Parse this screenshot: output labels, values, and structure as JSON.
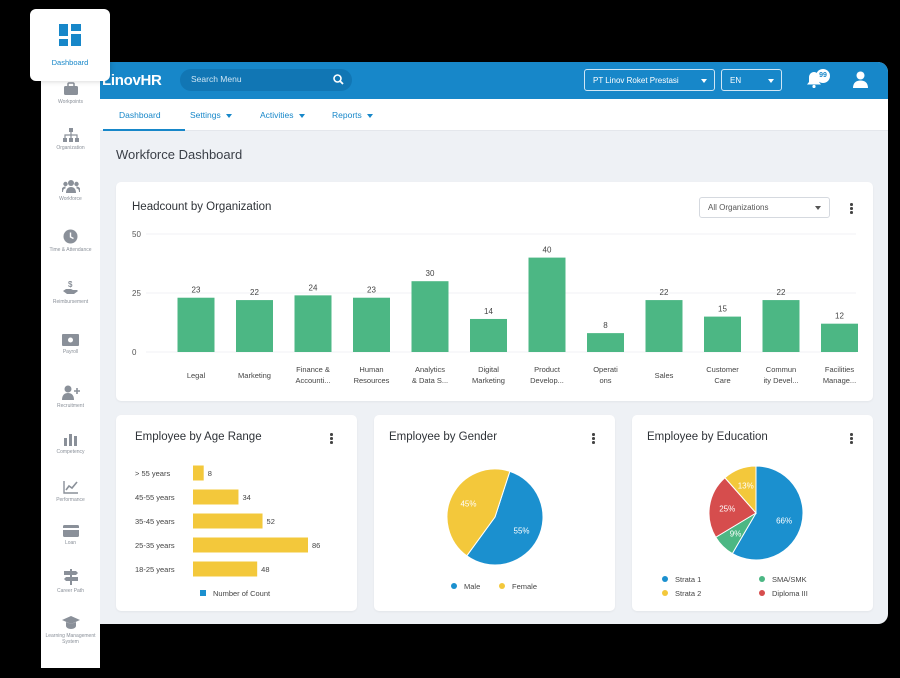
{
  "app": {
    "logo": "LinovHR"
  },
  "search": {
    "placeholder": "Search Menu"
  },
  "company_select": {
    "value": "PT Linov Roket Prestasi"
  },
  "language_select": {
    "value": "EN"
  },
  "notifications": {
    "count": "99"
  },
  "nav": {
    "tabs": [
      {
        "label": "Dashboard",
        "active": true
      },
      {
        "label": "Settings"
      },
      {
        "label": "Activities"
      },
      {
        "label": "Reports"
      }
    ]
  },
  "page": {
    "title": "Workforce Dashboard"
  },
  "sidebar": {
    "items": [
      {
        "label": "Dashboard",
        "icon": "grid-icon",
        "active": true
      },
      {
        "label": "Workpoints",
        "icon": "briefcase-icon"
      },
      {
        "label": "Organization",
        "icon": "org-chart-icon"
      },
      {
        "label": "Workforce",
        "icon": "users-icon"
      },
      {
        "label": "Time & Attendance",
        "icon": "clock-icon"
      },
      {
        "label": "Reimbursement",
        "icon": "hand-money-icon"
      },
      {
        "label": "Payroll",
        "icon": "money-icon"
      },
      {
        "label": "Recruitment",
        "icon": "user-plus-icon"
      },
      {
        "label": "Competency",
        "icon": "bar-chart-icon"
      },
      {
        "label": "Performance",
        "icon": "line-chart-icon"
      },
      {
        "label": "Loan",
        "icon": "card-icon"
      },
      {
        "label": "Career Path",
        "icon": "signpost-icon"
      },
      {
        "label": "Learning Management System",
        "icon": "graduation-cap-icon"
      }
    ]
  },
  "headcount": {
    "title": "Headcount by Organization",
    "filter": "All Organizations"
  },
  "age": {
    "title": "Employee by Age Range",
    "legend": "Number of Count"
  },
  "gender": {
    "title": "Employee by Gender"
  },
  "education": {
    "title": "Employee by Education"
  },
  "colors": {
    "primary": "#1787c9",
    "green": "#4cb784",
    "yellow": "#f3c83b",
    "blue": "#1b90cf",
    "red": "#d64d4d"
  },
  "chart_data": [
    {
      "type": "bar",
      "title": "Headcount by Organization",
      "categories": [
        [
          "Legal"
        ],
        [
          "Marketing"
        ],
        [
          "Finance &",
          "Accounti..."
        ],
        [
          "Human",
          "Resources"
        ],
        [
          "Analytics",
          "& Data S..."
        ],
        [
          "Digital",
          "Marketing"
        ],
        [
          "Product",
          "Develop..."
        ],
        [
          "Operati",
          "ons"
        ],
        [
          "Sales"
        ],
        [
          "Customer",
          "Care"
        ],
        [
          "Commun",
          "ity Devel..."
        ],
        [
          "Facilities",
          "Manage..."
        ]
      ],
      "values": [
        23,
        22,
        24,
        23,
        30,
        14,
        40,
        8,
        22,
        15,
        22,
        12
      ],
      "ylim": [
        0,
        50
      ],
      "yticks": [
        "0",
        "25",
        "50"
      ],
      "color": "#4cb784"
    },
    {
      "type": "bar",
      "orientation": "horizontal",
      "title": "Employee by Age Range",
      "categories": [
        "> 55 years",
        "45-55 years",
        "35-45 years",
        "25-35 years",
        "18-25 years"
      ],
      "values": [
        8,
        34,
        52,
        86,
        48
      ],
      "series_name": "Number of Count",
      "color": "#f3c83b"
    },
    {
      "type": "pie",
      "title": "Employee by Gender",
      "slices": [
        {
          "label": "Male",
          "value": 55,
          "text": "55%",
          "color": "#1b90cf"
        },
        {
          "label": "Female",
          "value": 45,
          "text": "45%",
          "color": "#f3c83b"
        }
      ]
    },
    {
      "type": "pie",
      "title": "Employee by Education",
      "slices": [
        {
          "label": "Strata 1",
          "value": 66,
          "text": "66%",
          "color": "#1b90cf"
        },
        {
          "label": "SMA/SMK",
          "value": 9,
          "text": "9%",
          "color": "#4cb784"
        },
        {
          "label": "Diploma III",
          "value": 25,
          "text": "25%",
          "color": "#d64d4d"
        },
        {
          "label": "Strata 2",
          "value": 13,
          "text": "13%",
          "color": "#f3c83b"
        }
      ]
    }
  ]
}
